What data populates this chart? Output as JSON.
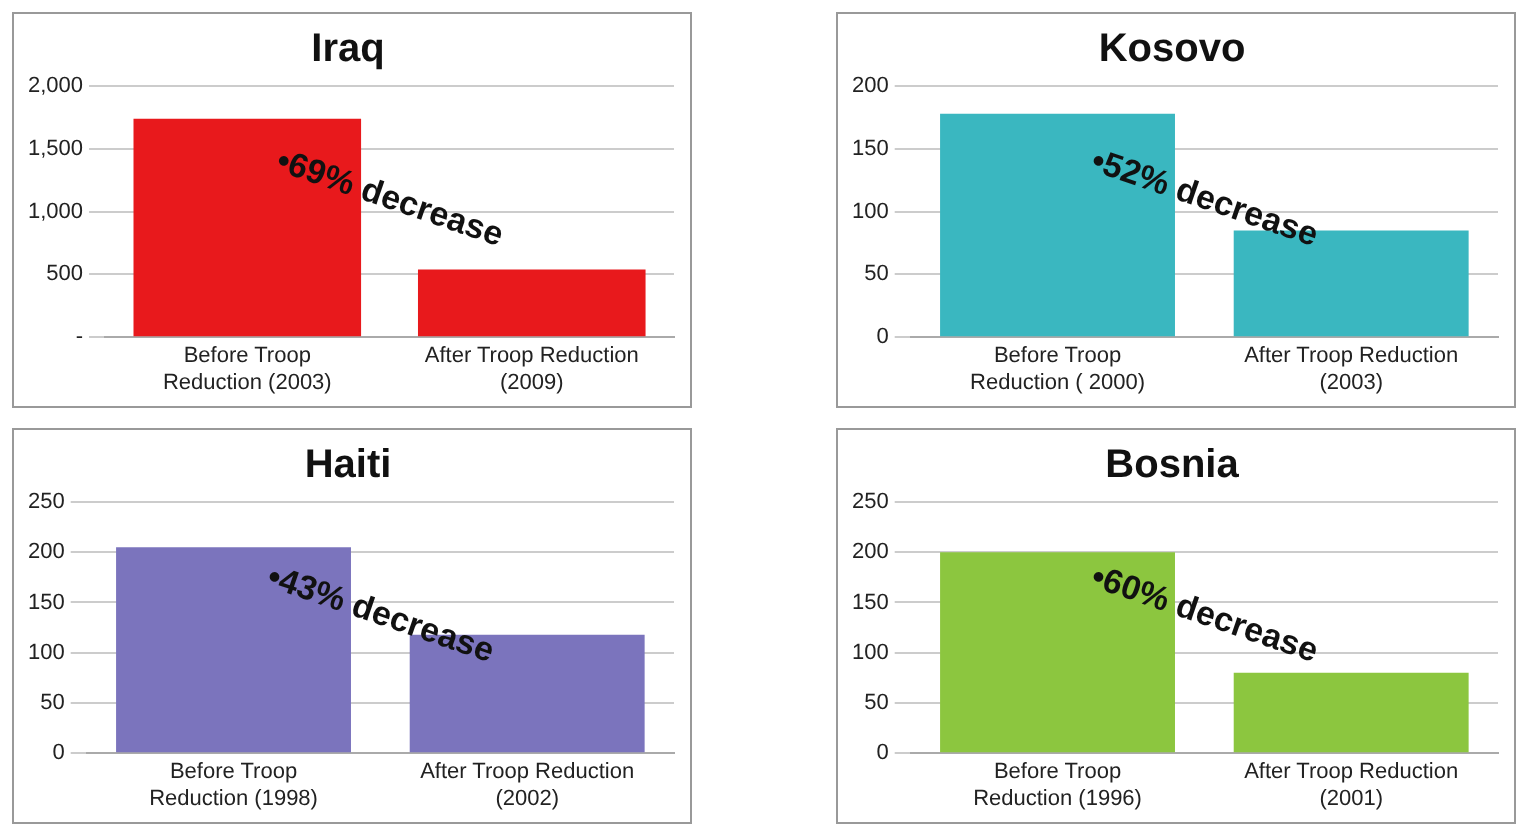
{
  "chart_data": [
    {
      "type": "bar",
      "title": "Iraq",
      "categories": [
        "Before Troop Reduction (2003)",
        "After Troop Reduction (2009)"
      ],
      "values": [
        1740,
        540
      ],
      "color": "#e8191c",
      "ylim": [
        0,
        2000
      ],
      "yticks": [
        {
          "value": 0,
          "label": "-"
        },
        {
          "value": 500,
          "label": "500"
        },
        {
          "value": 1000,
          "label": "1,000"
        },
        {
          "value": 1500,
          "label": "1,500"
        },
        {
          "value": 2000,
          "label": "2,000"
        }
      ],
      "grid": "y",
      "legend": false,
      "annotations": [
        "•69% decrease"
      ]
    },
    {
      "type": "bar",
      "title": "Kosovo",
      "categories": [
        "Before Troop Reduction ( 2000)",
        "After Troop Reduction (2003)"
      ],
      "values": [
        178,
        85
      ],
      "color": "#3ab7c0",
      "ylim": [
        0,
        200
      ],
      "yticks": [
        0,
        50,
        100,
        150,
        200
      ],
      "grid": "y",
      "legend": false,
      "annotations": [
        "•52% decrease"
      ]
    },
    {
      "type": "bar",
      "title": "Haiti",
      "categories": [
        "Before Troop Reduction (1998)",
        "After Troop Reduction (2002)"
      ],
      "values": [
        205,
        118
      ],
      "color": "#7b74bd",
      "ylim": [
        0,
        250
      ],
      "yticks": [
        0,
        50,
        100,
        150,
        200,
        250
      ],
      "grid": "y",
      "legend": false,
      "annotations": [
        "•43% decrease"
      ]
    },
    {
      "type": "bar",
      "title": "Bosnia",
      "categories": [
        "Before Troop Reduction (1996)",
        "After Troop Reduction (2001)"
      ],
      "values": [
        200,
        80
      ],
      "color": "#8cc63f",
      "ylim": [
        0,
        250
      ],
      "yticks": [
        0,
        50,
        100,
        150,
        200,
        250
      ],
      "grid": "y",
      "legend": false,
      "annotations": [
        "•60% decrease"
      ]
    }
  ]
}
